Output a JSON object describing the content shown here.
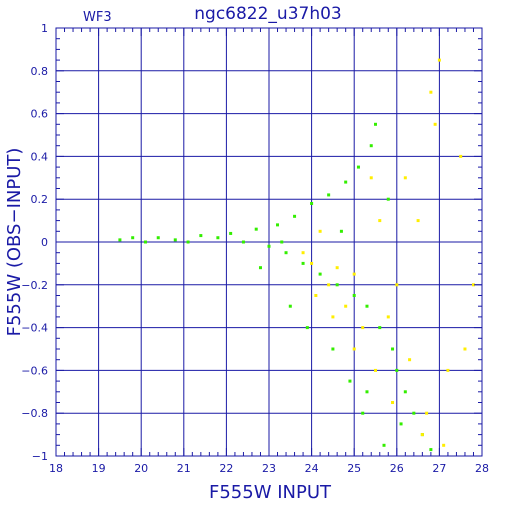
{
  "chart_data": {
    "type": "scatter",
    "title": "ngc6822_u37h03",
    "subtitle": "WF3",
    "xlabel": "F555W INPUT",
    "ylabel": "F555W (OBS−INPUT)",
    "xlim": [
      18,
      28
    ],
    "ylim": [
      -1,
      1
    ],
    "x_ticks": [
      "18",
      "19",
      "20",
      "21",
      "22",
      "23",
      "24",
      "25",
      "26",
      "27",
      "28"
    ],
    "y_ticks": [
      "−1",
      "−0.8",
      "−0.6",
      "−0.4",
      "−0.2",
      "0",
      "0.2",
      "0.4",
      "0.6",
      "0.8",
      "1"
    ],
    "grid": true,
    "series": [
      {
        "color": "#33ee00",
        "points": [
          [
            19.5,
            0.01
          ],
          [
            19.8,
            0.02
          ],
          [
            20.1,
            0.0
          ],
          [
            20.4,
            0.02
          ],
          [
            20.8,
            0.01
          ],
          [
            21.1,
            0.0
          ],
          [
            21.4,
            0.03
          ],
          [
            21.8,
            0.02
          ],
          [
            22.1,
            0.04
          ],
          [
            22.4,
            0.0
          ],
          [
            22.7,
            0.06
          ],
          [
            23.0,
            -0.02
          ],
          [
            23.2,
            0.08
          ],
          [
            23.4,
            -0.05
          ],
          [
            23.6,
            0.12
          ],
          [
            23.8,
            -0.1
          ],
          [
            24.0,
            0.18
          ],
          [
            24.2,
            -0.15
          ],
          [
            24.4,
            0.22
          ],
          [
            24.6,
            -0.2
          ],
          [
            24.8,
            0.28
          ],
          [
            25.0,
            -0.25
          ],
          [
            25.1,
            0.35
          ],
          [
            25.3,
            -0.3
          ],
          [
            25.4,
            0.45
          ],
          [
            25.5,
            0.55
          ],
          [
            25.6,
            -0.4
          ],
          [
            25.8,
            0.2
          ],
          [
            25.9,
            -0.5
          ],
          [
            26.0,
            -0.6
          ],
          [
            26.2,
            -0.7
          ],
          [
            26.4,
            -0.8
          ],
          [
            26.6,
            -0.9
          ],
          [
            26.8,
            -0.97
          ],
          [
            24.5,
            -0.5
          ],
          [
            24.9,
            -0.65
          ],
          [
            25.2,
            -0.8
          ],
          [
            23.5,
            -0.3
          ],
          [
            23.9,
            -0.4
          ],
          [
            22.8,
            -0.12
          ],
          [
            25.7,
            -0.95
          ],
          [
            26.1,
            -0.85
          ],
          [
            25.3,
            -0.7
          ],
          [
            24.7,
            0.05
          ],
          [
            23.3,
            0.0
          ]
        ]
      },
      {
        "color": "#ffee00",
        "points": [
          [
            23.8,
            -0.05
          ],
          [
            24.0,
            -0.1
          ],
          [
            24.2,
            0.05
          ],
          [
            24.4,
            -0.2
          ],
          [
            24.6,
            -0.12
          ],
          [
            24.8,
            -0.3
          ],
          [
            25.0,
            -0.15
          ],
          [
            25.2,
            -0.4
          ],
          [
            25.4,
            0.3
          ],
          [
            25.6,
            0.1
          ],
          [
            25.8,
            -0.35
          ],
          [
            26.0,
            -0.2
          ],
          [
            26.3,
            -0.55
          ],
          [
            26.5,
            0.1
          ],
          [
            26.7,
            -0.8
          ],
          [
            26.9,
            0.55
          ],
          [
            27.0,
            0.85
          ],
          [
            27.2,
            -0.6
          ],
          [
            27.5,
            0.4
          ],
          [
            27.8,
            -0.2
          ],
          [
            25.5,
            -0.6
          ],
          [
            25.0,
            -0.5
          ],
          [
            24.5,
            -0.35
          ],
          [
            26.2,
            0.3
          ],
          [
            26.8,
            0.7
          ],
          [
            27.1,
            -0.95
          ],
          [
            27.6,
            -0.5
          ],
          [
            24.1,
            -0.25
          ],
          [
            25.9,
            -0.75
          ],
          [
            26.6,
            -0.9
          ]
        ]
      }
    ]
  }
}
